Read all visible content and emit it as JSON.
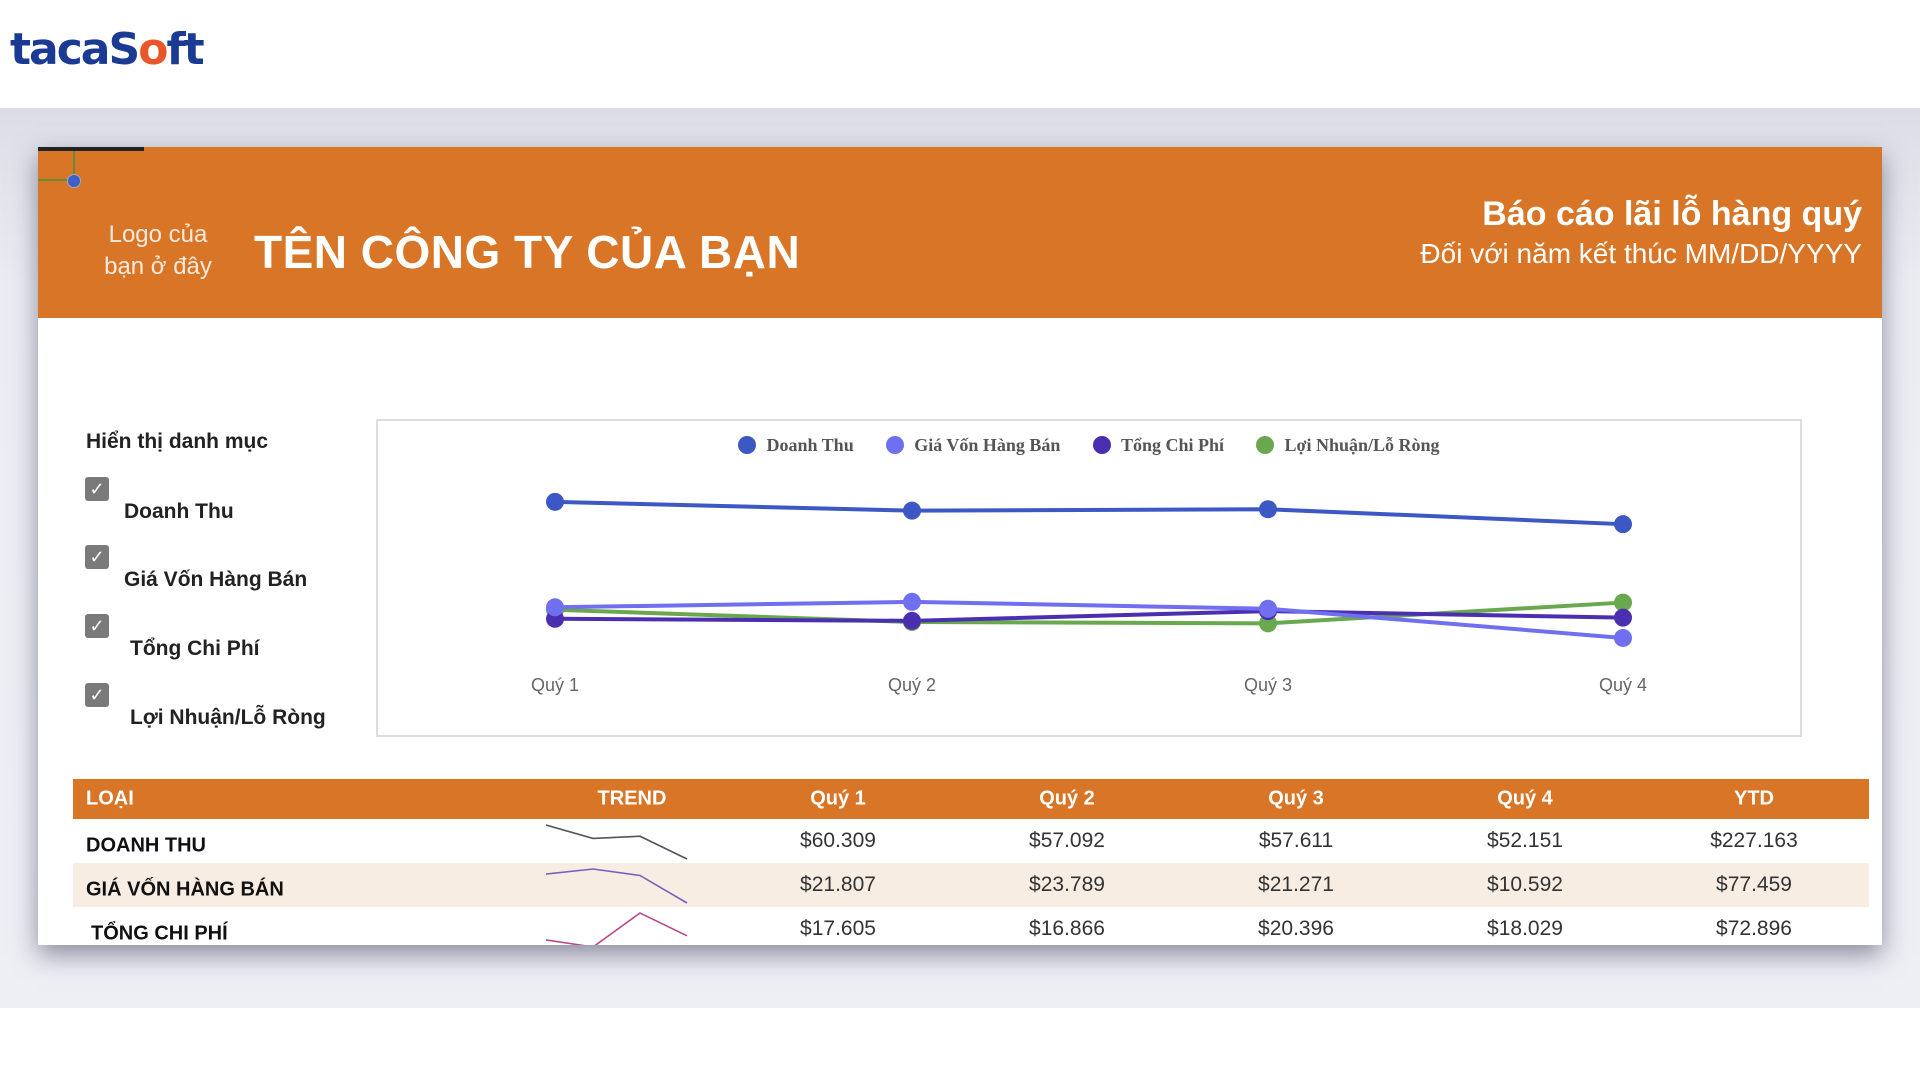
{
  "brand": {
    "name_part1": "taca",
    "name_part2": "S",
    "name_o": "o",
    "name_part3": "ft"
  },
  "header": {
    "logo_placeholder": "Logo của bạn ở đây",
    "company_name": "TÊN CÔNG TY CỦA BẠN",
    "report_title": "Báo cáo lãi lỗ hàng quý",
    "report_subtitle": "Đối với năm kết thúc MM/DD/YYYY",
    "accent_color": "#d97526"
  },
  "filter_panel": {
    "title": "Hiển thị danh mục",
    "items": [
      {
        "label": "Doanh Thu",
        "checked": true
      },
      {
        "label": "Giá Vốn Hàng Bán",
        "checked": true
      },
      {
        "label": "Tổng Chi Phí",
        "checked": true
      },
      {
        "label": "Lợi Nhuận/Lỗ Ròng",
        "checked": true
      }
    ]
  },
  "chart_data": {
    "type": "line",
    "categories": [
      "Quý 1",
      "Quý 2",
      "Quý 3",
      "Quý 4"
    ],
    "ylim": [
      0,
      65000
    ],
    "grid": false,
    "legend_position": "top",
    "series": [
      {
        "name": "Doanh Thu",
        "color": "#3d57c4",
        "values": [
          60309,
          57092,
          57611,
          52151
        ]
      },
      {
        "name": "Giá Vốn Hàng Bán",
        "color": "#6f6ff0",
        "values": [
          21807,
          23789,
          21271,
          10592
        ]
      },
      {
        "name": "Tổng Chi Phí",
        "color": "#4a2fb0",
        "values": [
          17605,
          16866,
          20396,
          18029
        ]
      },
      {
        "name": "Lợi Nhuận/Lỗ Ròng",
        "color": "#6aa84f",
        "values": [
          20897,
          16437,
          15944,
          23530
        ]
      }
    ]
  },
  "table": {
    "headers": [
      "LOẠI",
      "TREND",
      "Quý 1",
      "Quý 2",
      "Quý 3",
      "Quý 4",
      "YTD"
    ],
    "rows": [
      {
        "label": "DOANH THU",
        "q1": "$60.309",
        "q2": "$57.092",
        "q3": "$57.611",
        "q4": "$52.151",
        "ytd": "$227.163",
        "trend_color": "#555555"
      },
      {
        "label": "GIÁ VỐN HÀNG BÁN",
        "q1": "$21.807",
        "q2": "$23.789",
        "q3": "$21.271",
        "q4": "$10.592",
        "ytd": "$77.459",
        "trend_color": "#7a5fc0"
      },
      {
        "label": "TỔNG CHI PHÍ",
        "q1": "$17.605",
        "q2": "$16.866",
        "q3": "$20.396",
        "q4": "$18.029",
        "ytd": "$72.896",
        "trend_color": "#b84a8a"
      }
    ]
  }
}
